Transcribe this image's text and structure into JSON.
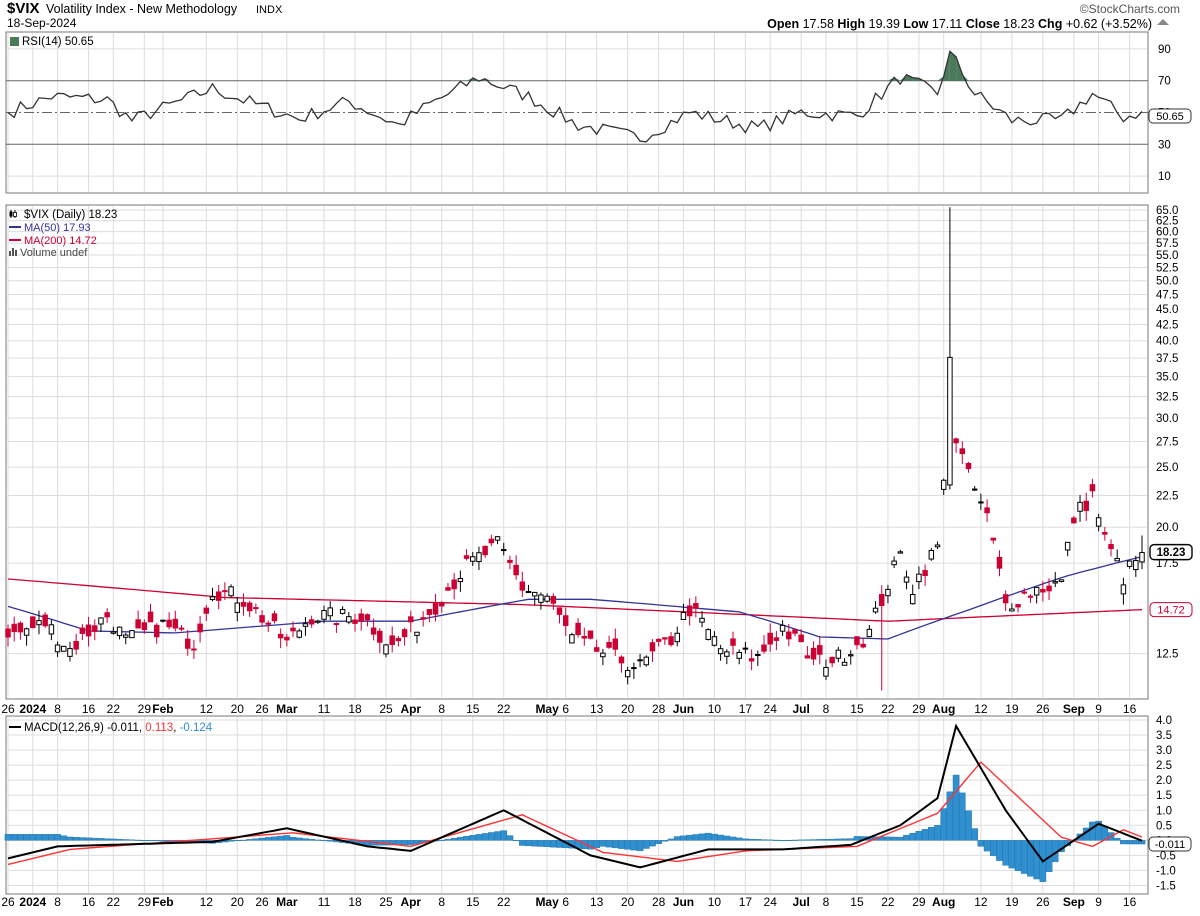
{
  "header": {
    "symbol": "$VIX",
    "name": "Volatility Index - New Methodology",
    "exchange": "INDX",
    "date": "18-Sep-2024",
    "brand": "©StockCharts.com",
    "open_label": "Open",
    "open": "17.58",
    "high_label": "High",
    "high": "19.39",
    "low_label": "Low",
    "low": "17.11",
    "close_label": "Close",
    "close": "18.23",
    "chg_label": "Chg",
    "chg": "+0.62 (+3.52%)"
  },
  "colors": {
    "up": "#000000",
    "down": "#cc0033",
    "ma50": "#333399",
    "ma200": "#cc0033",
    "rsi": "#333333",
    "rsi_fill": "#4a7a5a",
    "macd": "#000000",
    "signal": "#ff3333",
    "hist": "#2f8fcf",
    "grid": "#dddddd",
    "border": "#777777"
  },
  "x_axis": {
    "labels": [
      {
        "t": "26",
        "i": 0,
        "b": false
      },
      {
        "t": "2024",
        "i": 4,
        "b": true
      },
      {
        "t": "8",
        "i": 8,
        "b": false
      },
      {
        "t": "16",
        "i": 13,
        "b": false
      },
      {
        "t": "22",
        "i": 17,
        "b": false
      },
      {
        "t": "29",
        "i": 22,
        "b": false
      },
      {
        "t": "Feb",
        "i": 25,
        "b": true
      },
      {
        "t": "12",
        "i": 32,
        "b": false
      },
      {
        "t": "20",
        "i": 37,
        "b": false
      },
      {
        "t": "26",
        "i": 41,
        "b": false
      },
      {
        "t": "Mar",
        "i": 45,
        "b": true
      },
      {
        "t": "11",
        "i": 51,
        "b": false
      },
      {
        "t": "18",
        "i": 56,
        "b": false
      },
      {
        "t": "25",
        "i": 61,
        "b": false
      },
      {
        "t": "Apr",
        "i": 65,
        "b": true
      },
      {
        "t": "8",
        "i": 70,
        "b": false
      },
      {
        "t": "15",
        "i": 75,
        "b": false
      },
      {
        "t": "22",
        "i": 80,
        "b": false
      },
      {
        "t": "May",
        "i": 87,
        "b": true
      },
      {
        "t": "6",
        "i": 90,
        "b": false
      },
      {
        "t": "13",
        "i": 95,
        "b": false
      },
      {
        "t": "20",
        "i": 100,
        "b": false
      },
      {
        "t": "28",
        "i": 105,
        "b": false
      },
      {
        "t": "Jun",
        "i": 109,
        "b": true
      },
      {
        "t": "10",
        "i": 114,
        "b": false
      },
      {
        "t": "17",
        "i": 119,
        "b": false
      },
      {
        "t": "24",
        "i": 123,
        "b": false
      },
      {
        "t": "Jul",
        "i": 128,
        "b": true
      },
      {
        "t": "8",
        "i": 132,
        "b": false
      },
      {
        "t": "15",
        "i": 137,
        "b": false
      },
      {
        "t": "22",
        "i": 142,
        "b": false
      },
      {
        "t": "29",
        "i": 147,
        "b": false
      },
      {
        "t": "Aug",
        "i": 151,
        "b": true
      },
      {
        "t": "12",
        "i": 157,
        "b": false
      },
      {
        "t": "19",
        "i": 162,
        "b": false
      },
      {
        "t": "26",
        "i": 167,
        "b": false
      },
      {
        "t": "Sep",
        "i": 172,
        "b": true
      },
      {
        "t": "9",
        "i": 176,
        "b": false
      },
      {
        "t": "16",
        "i": 181,
        "b": false
      }
    ]
  },
  "rsi_panel": {
    "legend": "RSI(14) 50.65",
    "current_label": "50.65",
    "ticks": [
      "90",
      "70",
      "50",
      "30",
      "10"
    ]
  },
  "price_panel": {
    "legend_main": "$VIX (Daily) 18.23",
    "legend_ma50": "MA(50) 17.93",
    "legend_ma200": "MA(200) 14.72",
    "legend_volume": "Volume undef",
    "last_label": "18.23",
    "ma200_label": "14.72",
    "ticks": [
      "65.0",
      "62.5",
      "60.0",
      "57.5",
      "55.0",
      "52.5",
      "50.0",
      "47.5",
      "45.0",
      "42.5",
      "40.0",
      "37.5",
      "35.0",
      "32.5",
      "30.0",
      "27.5",
      "25.0",
      "22.5",
      "20.0",
      "17.5",
      "12.5"
    ]
  },
  "macd_panel": {
    "legend_prefix": "MACD(12,26,9)",
    "macd_value": "-0.011",
    "signal_value": "0.113",
    "hist_value": "-0.124",
    "current_label": "-0.011",
    "ticks": [
      "4.0",
      "3.5",
      "3.0",
      "2.5",
      "2.0",
      "1.5",
      "1.0",
      "0.5",
      "0.0",
      "-0.5",
      "-1.0",
      "-1.5"
    ]
  },
  "chart_data": [
    {
      "type": "candlestick",
      "title": "$VIX (Daily) 18.23",
      "y_scale": "log",
      "ylim": [
        10.6,
        66
      ],
      "date_range": [
        "2023-12-26",
        "2024-09-18"
      ],
      "last": {
        "open": 17.58,
        "high": 19.39,
        "low": 17.11,
        "close": 18.23
      },
      "close_waypoints": [
        {
          "date": "2023-12-26",
          "close": 13.3
        },
        {
          "date": "2024-01-04",
          "close": 14.0
        },
        {
          "date": "2024-01-10",
          "close": 12.7
        },
        {
          "date": "2024-01-19",
          "close": 14.4
        },
        {
          "date": "2024-01-24",
          "close": 13.1
        },
        {
          "date": "2024-02-01",
          "close": 13.9
        },
        {
          "date": "2024-02-08",
          "close": 13.0
        },
        {
          "date": "2024-02-13",
          "close": 15.9
        },
        {
          "date": "2024-02-21",
          "close": 15.3
        },
        {
          "date": "2024-03-01",
          "close": 13.0
        },
        {
          "date": "2024-03-07",
          "close": 14.4
        },
        {
          "date": "2024-03-14",
          "close": 14.3
        },
        {
          "date": "2024-03-19",
          "close": 14.4
        },
        {
          "date": "2024-03-26",
          "close": 12.8
        },
        {
          "date": "2024-04-01",
          "close": 13.6
        },
        {
          "date": "2024-04-05",
          "close": 15.0
        },
        {
          "date": "2024-04-12",
          "close": 17.3
        },
        {
          "date": "2024-04-19",
          "close": 18.7
        },
        {
          "date": "2024-04-25",
          "close": 16.0
        },
        {
          "date": "2024-05-01",
          "close": 15.4
        },
        {
          "date": "2024-05-07",
          "close": 13.2
        },
        {
          "date": "2024-05-15",
          "close": 12.4
        },
        {
          "date": "2024-05-22",
          "close": 11.9
        },
        {
          "date": "2024-05-30",
          "close": 13.2
        },
        {
          "date": "2024-06-04",
          "close": 14.8
        },
        {
          "date": "2024-06-11",
          "close": 12.7
        },
        {
          "date": "2024-06-20",
          "close": 12.3
        },
        {
          "date": "2024-06-26",
          "close": 13.8
        },
        {
          "date": "2024-07-03",
          "close": 12.1
        },
        {
          "date": "2024-07-10",
          "close": 12.3
        },
        {
          "date": "2024-07-17",
          "close": 13.5
        },
        {
          "date": "2024-07-24",
          "close": 18.0
        },
        {
          "date": "2024-07-26",
          "close": 16.0
        },
        {
          "date": "2024-08-01",
          "close": 18.6
        },
        {
          "date": "2024-08-02",
          "close": 23.4
        },
        {
          "date": "2024-08-05",
          "close": 38.6
        },
        {
          "date": "2024-08-06",
          "close": 27.7
        },
        {
          "date": "2024-08-08",
          "close": 24.1
        },
        {
          "date": "2024-08-13",
          "close": 20.7
        },
        {
          "date": "2024-08-16",
          "close": 15.0
        },
        {
          "date": "2024-08-23",
          "close": 15.9
        },
        {
          "date": "2024-08-29",
          "close": 16.3
        },
        {
          "date": "2024-09-03",
          "close": 20.7
        },
        {
          "date": "2024-09-06",
          "close": 22.6
        },
        {
          "date": "2024-09-10",
          "close": 19.1
        },
        {
          "date": "2024-09-13",
          "close": 16.6
        },
        {
          "date": "2024-09-18",
          "close": 18.2
        }
      ],
      "max_high": {
        "date": "2024-08-05",
        "high": 65.7
      },
      "min_low": {
        "date": "2024-07-19",
        "low": 10.9
      },
      "ma50_waypoints": [
        {
          "date": "2023-12-26",
          "value": 14.9
        },
        {
          "date": "2024-01-16",
          "value": 13.6
        },
        {
          "date": "2024-02-05",
          "value": 13.5
        },
        {
          "date": "2024-03-11",
          "value": 14.1
        },
        {
          "date": "2024-04-01",
          "value": 14.1
        },
        {
          "date": "2024-04-26",
          "value": 15.3
        },
        {
          "date": "2024-05-10",
          "value": 15.3
        },
        {
          "date": "2024-06-14",
          "value": 14.6
        },
        {
          "date": "2024-07-05",
          "value": 13.3
        },
        {
          "date": "2024-07-22",
          "value": 13.2
        },
        {
          "date": "2024-08-08",
          "value": 14.7
        },
        {
          "date": "2024-08-30",
          "value": 16.7
        },
        {
          "date": "2024-09-18",
          "value": 17.93
        }
      ],
      "ma200_waypoints": [
        {
          "date": "2023-12-26",
          "value": 16.5
        },
        {
          "date": "2024-02-15",
          "value": 15.4
        },
        {
          "date": "2024-04-25",
          "value": 15.0
        },
        {
          "date": "2024-07-22",
          "value": 14.1
        },
        {
          "date": "2024-09-18",
          "value": 14.72
        }
      ]
    },
    {
      "type": "line",
      "title": "RSI(14) 50.65",
      "ylim": [
        0,
        100
      ],
      "reference_lines": [
        70,
        50,
        30
      ],
      "waypoints": [
        {
          "date": "2023-12-26",
          "value": 50
        },
        {
          "date": "2024-01-05",
          "value": 60
        },
        {
          "date": "2024-01-19",
          "value": 58
        },
        {
          "date": "2024-01-25",
          "value": 45
        },
        {
          "date": "2024-02-13",
          "value": 65
        },
        {
          "date": "2024-02-23",
          "value": 55
        },
        {
          "date": "2024-03-05",
          "value": 46
        },
        {
          "date": "2024-03-15",
          "value": 57
        },
        {
          "date": "2024-03-27",
          "value": 42
        },
        {
          "date": "2024-04-04",
          "value": 55
        },
        {
          "date": "2024-04-16",
          "value": 72
        },
        {
          "date": "2024-04-26",
          "value": 60
        },
        {
          "date": "2024-05-08",
          "value": 42
        },
        {
          "date": "2024-05-22",
          "value": 34
        },
        {
          "date": "2024-06-04",
          "value": 50
        },
        {
          "date": "2024-06-20",
          "value": 40
        },
        {
          "date": "2024-07-01",
          "value": 50
        },
        {
          "date": "2024-07-15",
          "value": 48
        },
        {
          "date": "2024-07-24",
          "value": 72
        },
        {
          "date": "2024-08-01",
          "value": 62
        },
        {
          "date": "2024-08-05",
          "value": 88
        },
        {
          "date": "2024-08-09",
          "value": 62
        },
        {
          "date": "2024-08-19",
          "value": 45
        },
        {
          "date": "2024-08-29",
          "value": 45
        },
        {
          "date": "2024-09-06",
          "value": 62
        },
        {
          "date": "2024-09-13",
          "value": 47
        },
        {
          "date": "2024-09-18",
          "value": 50.65
        }
      ]
    },
    {
      "type": "line",
      "title": "MACD(12,26,9)",
      "ylim": [
        -1.75,
        4.1
      ],
      "series": [
        {
          "name": "MACD",
          "current": -0.011,
          "waypoints": [
            {
              "date": "2023-12-26",
              "value": -0.6
            },
            {
              "date": "2024-01-08",
              "value": -0.2
            },
            {
              "date": "2024-02-13",
              "value": -0.05
            },
            {
              "date": "2024-03-01",
              "value": 0.4
            },
            {
              "date": "2024-03-20",
              "value": -0.2
            },
            {
              "date": "2024-04-01",
              "value": -0.35
            },
            {
              "date": "2024-04-22",
              "value": 1.0
            },
            {
              "date": "2024-05-10",
              "value": -0.5
            },
            {
              "date": "2024-05-22",
              "value": -0.9
            },
            {
              "date": "2024-06-07",
              "value": -0.3
            },
            {
              "date": "2024-06-26",
              "value": -0.3
            },
            {
              "date": "2024-07-12",
              "value": -0.15
            },
            {
              "date": "2024-07-24",
              "value": 0.5
            },
            {
              "date": "2024-08-01",
              "value": 1.4
            },
            {
              "date": "2024-08-06",
              "value": 3.8
            },
            {
              "date": "2024-08-16",
              "value": 1.0
            },
            {
              "date": "2024-08-26",
              "value": -0.7
            },
            {
              "date": "2024-09-09",
              "value": 0.55
            },
            {
              "date": "2024-09-18",
              "value": -0.011
            }
          ]
        },
        {
          "name": "Signal",
          "current": 0.113,
          "waypoints": [
            {
              "date": "2023-12-26",
              "value": -0.8
            },
            {
              "date": "2024-01-10",
              "value": -0.3
            },
            {
              "date": "2024-03-04",
              "value": 0.25
            },
            {
              "date": "2024-04-01",
              "value": -0.2
            },
            {
              "date": "2024-04-25",
              "value": 0.85
            },
            {
              "date": "2024-05-14",
              "value": -0.4
            },
            {
              "date": "2024-05-31",
              "value": -0.7
            },
            {
              "date": "2024-06-17",
              "value": -0.35
            },
            {
              "date": "2024-07-15",
              "value": -0.2
            },
            {
              "date": "2024-08-01",
              "value": 0.9
            },
            {
              "date": "2024-08-12",
              "value": 2.6
            },
            {
              "date": "2024-08-29",
              "value": 0.1
            },
            {
              "date": "2024-09-06",
              "value": -0.2
            },
            {
              "date": "2024-09-13",
              "value": 0.35
            },
            {
              "date": "2024-09-18",
              "value": 0.113
            }
          ]
        },
        {
          "name": "Histogram",
          "current": -0.124
        }
      ]
    }
  ]
}
